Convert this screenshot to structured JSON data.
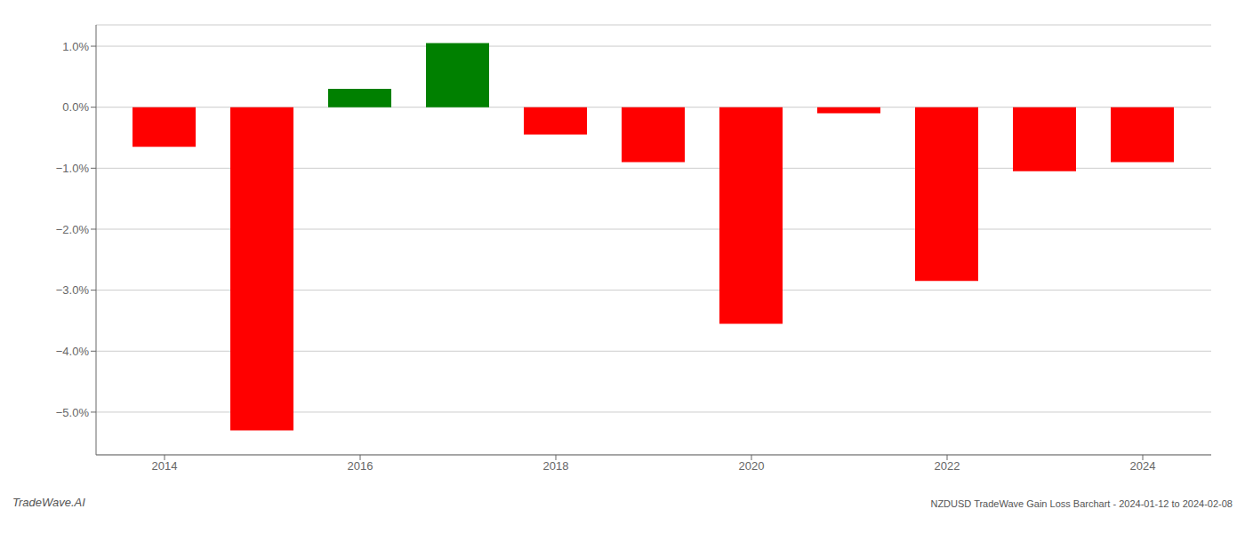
{
  "chart_data": {
    "type": "bar",
    "x": [
      2014,
      2015,
      2016,
      2017,
      2018,
      2019,
      2020,
      2021,
      2022,
      2023,
      2024
    ],
    "values": [
      -0.0065,
      -0.053,
      0.003,
      0.0105,
      -0.0045,
      -0.009,
      -0.0355,
      -0.001,
      -0.0285,
      -0.0105,
      -0.009
    ],
    "colors": [
      "#ff0000",
      "#ff0000",
      "#008000",
      "#008000",
      "#ff0000",
      "#ff0000",
      "#ff0000",
      "#ff0000",
      "#ff0000",
      "#ff0000",
      "#ff0000"
    ],
    "xlim": [
      2013.3,
      2024.7
    ],
    "xticks": [
      2014,
      2016,
      2018,
      2020,
      2022,
      2024
    ],
    "ylim": [
      -0.057,
      0.0135
    ],
    "yticks": [
      {
        "value": 0.01,
        "label": "1.0%"
      },
      {
        "value": 0.0,
        "label": "0.0%"
      },
      {
        "value": -0.01,
        "label": "−1.0%"
      },
      {
        "value": -0.02,
        "label": "−2.0%"
      },
      {
        "value": -0.03,
        "label": "−3.0%"
      },
      {
        "value": -0.04,
        "label": "−4.0%"
      },
      {
        "value": -0.05,
        "label": "−5.0%"
      }
    ],
    "grid": true,
    "annotations": [
      "TradeWave.AI",
      "NZDUSD TradeWave Gain Loss Barchart - 2024-01-12 to 2024-02-08"
    ]
  }
}
